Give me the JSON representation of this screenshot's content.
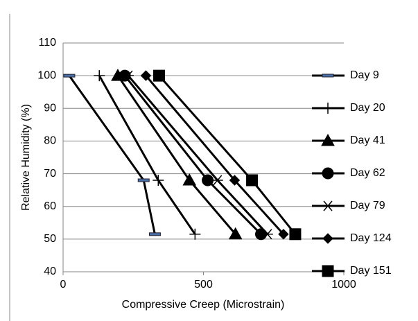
{
  "chart_data": {
    "type": "line",
    "x_label": "Compressive Creep (Microstrain)",
    "y_label": "Relative Humidity (%)",
    "xlim": [
      0,
      1000
    ],
    "xticks": [
      0,
      500,
      1000
    ],
    "ylim": [
      40,
      110
    ],
    "yticks": [
      40,
      50,
      60,
      70,
      80,
      90,
      100,
      110
    ],
    "grid": true,
    "legend": "right",
    "series": [
      {
        "name": "Day 9",
        "color": "#000000",
        "marker": "dash",
        "x": [
          22,
          287,
          327
        ],
        "values": [
          100,
          68,
          51.5
        ]
      },
      {
        "name": "Day 20",
        "color": "#000000",
        "marker": "plus",
        "x": [
          129,
          339,
          470
        ],
        "values": [
          100,
          68,
          51.5
        ]
      },
      {
        "name": "Day 41",
        "color": "#000000",
        "marker": "triangle",
        "x": [
          195,
          450,
          614
        ],
        "values": [
          100,
          68,
          51.5
        ]
      },
      {
        "name": "Day 62",
        "color": "#000000",
        "marker": "circle",
        "x": [
          220,
          515,
          705
        ],
        "values": [
          100,
          68,
          51.5
        ]
      },
      {
        "name": "Day 79",
        "color": "#000000",
        "marker": "asterisk",
        "x": [
          232,
          550,
          728
        ],
        "values": [
          100,
          68,
          51.5
        ]
      },
      {
        "name": "Day 124",
        "color": "#000000",
        "marker": "diamond",
        "x": [
          295,
          611,
          785
        ],
        "values": [
          100,
          68,
          51.5
        ]
      },
      {
        "name": "Day 151",
        "color": "#000000",
        "marker": "square",
        "x": [
          342,
          673,
          827
        ],
        "values": [
          100,
          68,
          51.5
        ]
      }
    ]
  }
}
